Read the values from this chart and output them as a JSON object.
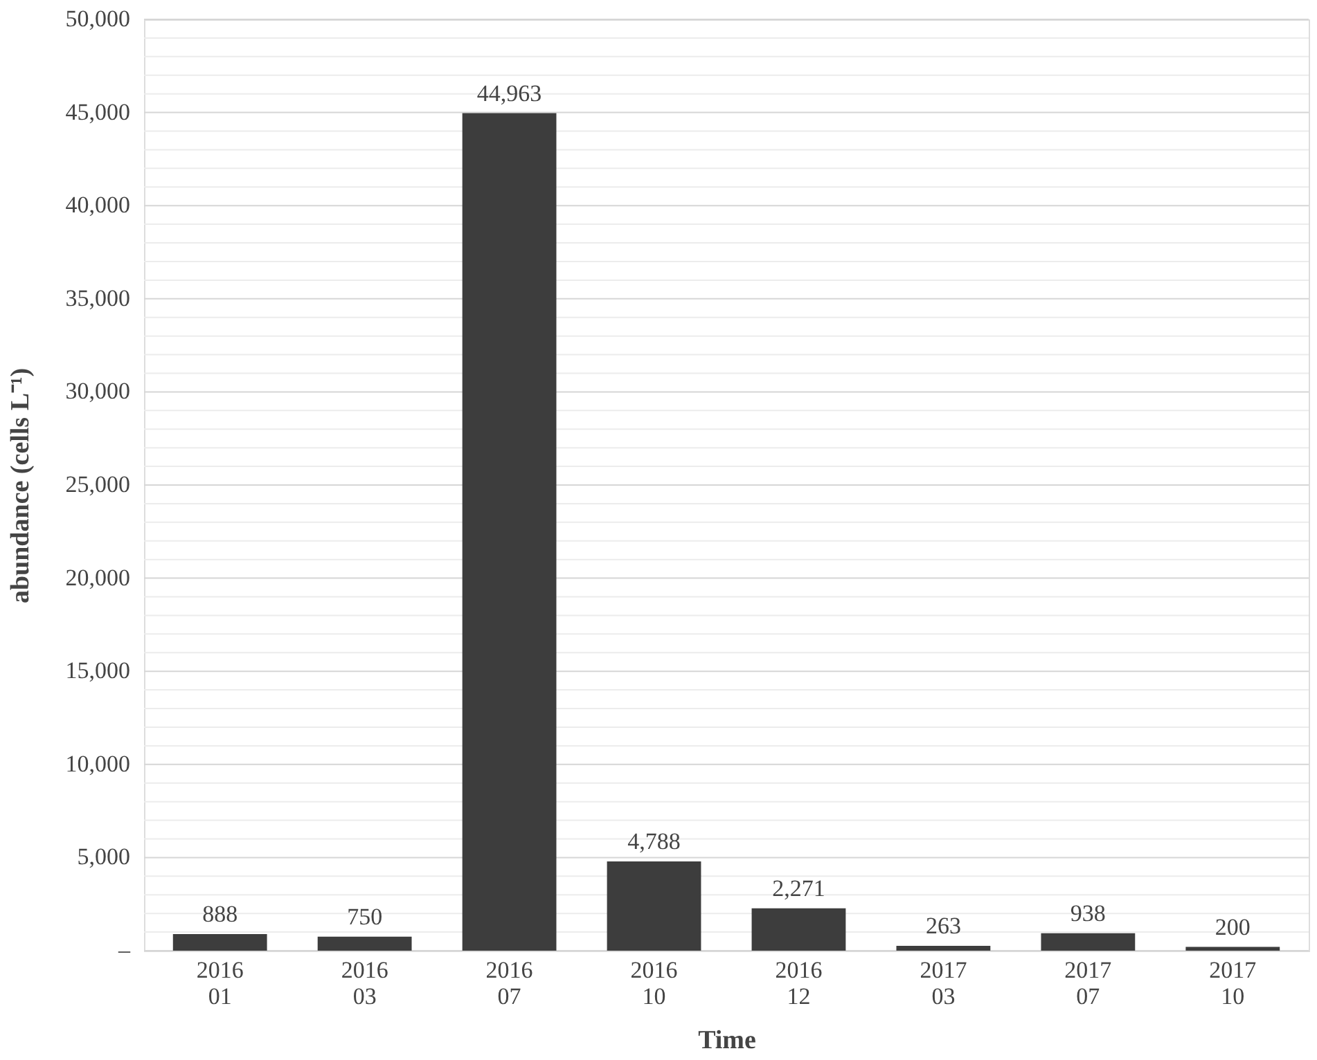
{
  "chart_data": {
    "type": "bar",
    "xlabel": "Time",
    "ylabel": "abundance (cells L⁻¹)",
    "categories": [
      "2016\n01",
      "2016\n03",
      "2016\n07",
      "2016\n10",
      "2016\n12",
      "2017\n03",
      "2017\n07",
      "2017\n10"
    ],
    "values": [
      888,
      750,
      44963,
      4788,
      2271,
      263,
      938,
      200
    ],
    "value_labels": [
      "888",
      "750",
      "44,963",
      "4,788",
      "2,271",
      "263",
      "938",
      "200"
    ],
    "color": "#3d3d3d",
    "grid": "y",
    "ylim": [
      0,
      50000
    ],
    "yticks": [
      {
        "value": 0,
        "label": "–"
      },
      {
        "value": 1000,
        "label": null
      },
      {
        "value": 2000,
        "label": null
      },
      {
        "value": 3000,
        "label": null
      },
      {
        "value": 4000,
        "label": null
      },
      {
        "value": 5000,
        "label": "5,000"
      },
      {
        "value": 6000,
        "label": null
      },
      {
        "value": 7000,
        "label": null
      },
      {
        "value": 8000,
        "label": null
      },
      {
        "value": 9000,
        "label": null
      },
      {
        "value": 10000,
        "label": "10,000"
      },
      {
        "value": 11000,
        "label": null
      },
      {
        "value": 12000,
        "label": null
      },
      {
        "value": 13000,
        "label": null
      },
      {
        "value": 14000,
        "label": null
      },
      {
        "value": 15000,
        "label": "15,000"
      },
      {
        "value": 16000,
        "label": null
      },
      {
        "value": 17000,
        "label": null
      },
      {
        "value": 18000,
        "label": null
      },
      {
        "value": 19000,
        "label": null
      },
      {
        "value": 20000,
        "label": "20,000"
      },
      {
        "value": 21000,
        "label": null
      },
      {
        "value": 22000,
        "label": null
      },
      {
        "value": 23000,
        "label": null
      },
      {
        "value": 24000,
        "label": null
      },
      {
        "value": 25000,
        "label": "25,000"
      },
      {
        "value": 26000,
        "label": null
      },
      {
        "value": 27000,
        "label": null
      },
      {
        "value": 28000,
        "label": null
      },
      {
        "value": 29000,
        "label": null
      },
      {
        "value": 30000,
        "label": "30,000"
      },
      {
        "value": 31000,
        "label": null
      },
      {
        "value": 32000,
        "label": null
      },
      {
        "value": 33000,
        "label": null
      },
      {
        "value": 34000,
        "label": null
      },
      {
        "value": 35000,
        "label": "35,000"
      },
      {
        "value": 36000,
        "label": null
      },
      {
        "value": 37000,
        "label": null
      },
      {
        "value": 38000,
        "label": null
      },
      {
        "value": 39000,
        "label": null
      },
      {
        "value": 40000,
        "label": "40,000"
      },
      {
        "value": 41000,
        "label": null
      },
      {
        "value": 42000,
        "label": null
      },
      {
        "value": 43000,
        "label": null
      },
      {
        "value": 44000,
        "label": null
      },
      {
        "value": 45000,
        "label": "45,000"
      },
      {
        "value": 46000,
        "label": null
      },
      {
        "value": 47000,
        "label": null
      },
      {
        "value": 48000,
        "label": null
      },
      {
        "value": 49000,
        "label": null
      },
      {
        "value": 50000,
        "label": "50,000"
      }
    ]
  }
}
